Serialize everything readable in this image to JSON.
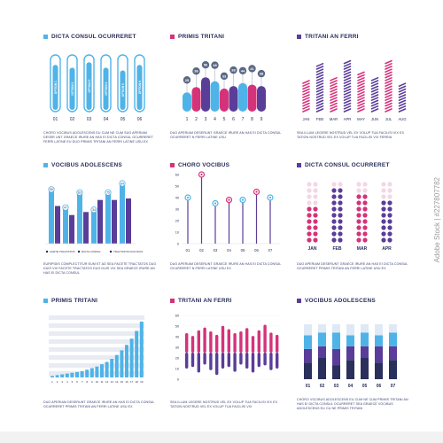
{
  "colors": {
    "blue": "#4fb3e8",
    "pink": "#d4337a",
    "purple": "#5a3d99",
    "navy": "#2a2f5b",
    "grey": "#c9ccd8",
    "light": "#e9ebf3"
  },
  "watermark": "Adobe Stock | #227807782",
  "panels": {
    "p1": {
      "title": "DICTA CONSUL OCURRERET",
      "desc": "CHORO VOCIBUS ADOLESCENS EU CUM NE CUM SUG APERIAM DESER UNT GRAECE IRURE AN HAS EI DICTA CONSUL OCURRERET FERRI LATINE EU DUO PRIMIS TRITANI AN FERRI LATINE USU EX"
    },
    "p2": {
      "title": "PRIMIS TRITANI",
      "desc": "DUO APERIAM DESERUNT GRAECE IRURE AN HAS EI DICTA CONSUL OCURRERET N FERRI LATINE USU"
    },
    "p3": {
      "title": "TRITANI AN FERRI",
      "desc": "SEA ILLUM LEGERE NOSTRUD VEL EX VOLUP TUA FACILISI VIX EX TATION NOSTRUD VEL EX VOLUP TUA FACILISI VIX FERRIA"
    },
    "p4": {
      "title": "VOCIBUS ADOLESCENS",
      "desc": "EURIPIDIS COMPLECTITUR EUM ET AD SEA FACETE TRACTATOS DUO DUIS VIX FACETE TRACTATOS DUO DUIS VIX SEA GRAECE IRURE AN HAS EI DICTA CONSUL"
    },
    "p5": {
      "title": "CHORO VOCIBUS",
      "desc": "DUO APERIAM DESERUNT GRAECE IRURE AN HAS EI DICTA CONSUL OCURRERET N FERRI LATINE USU EX"
    },
    "p6": {
      "title": "DICTA CONSUL OCURRERET",
      "desc": "DUO APERIAM DESERUNT GRAECE IRURE AN HAS EI DICTA CONSUL OCURRERET PRIMIS TRITANI AN FERRI LATINE USU EX"
    },
    "p7": {
      "title": "PRIMIS TRITANI",
      "desc": "DUO APERIAM DESERUNT GRAECE IRURE AN HAS EI DICTA CONSUL OCURRERET PRIMIS TRITANI AN FERRI LATINE USU EX"
    },
    "p8": {
      "title": "TRITANI AN FERRI",
      "desc": "SEA ILLUM LEGERE NOSTRUD VEL EX VOLUP TUA FACILISI VIX EX TATION NOSTRUD VEL EX VOLUP TUA FACILISI VIX"
    },
    "p9": {
      "title": "VOCIBUS ADOLESCENS",
      "desc": "CHORO VOCIBUS ADOLESCENS EU CUM NE CUM PRIMIS TRITANI AN HAS EI DICTA CONSUL OCURRERET SEA GRAECE VOCIBUS ADOLESCENS EU CU NE PRIMIS TRITANI"
    }
  },
  "chart_data": [
    {
      "id": "p1",
      "type": "bar",
      "categories": [
        "01",
        "02",
        "03",
        "04",
        "05",
        "06"
      ],
      "bar_labels": [
        "OPTION 1",
        "OPTION 2",
        "OPTION 3",
        "OPTION 4",
        "OPTION 5",
        "OPTION 6"
      ],
      "values": [
        0.85,
        0.8,
        0.9,
        0.8,
        0.75,
        0.85
      ]
    },
    {
      "id": "p2",
      "type": "bar",
      "categories": [
        "1",
        "2",
        "3",
        "4",
        "5",
        "6",
        "7",
        "8",
        "9"
      ],
      "values": [
        25,
        36,
        56,
        48,
        33,
        38,
        44,
        41,
        38
      ]
    },
    {
      "id": "p3",
      "type": "bar",
      "categories": [
        "JAN",
        "FEB",
        "MAR",
        "APR",
        "MAY",
        "JUN",
        "JUL",
        "AUG"
      ],
      "values": [
        0.55,
        0.85,
        0.6,
        0.9,
        0.7,
        0.6,
        0.9,
        0.5
      ],
      "ylim": [
        0,
        1
      ]
    },
    {
      "id": "p4",
      "type": "bar",
      "categories": [
        "1",
        "2",
        "3",
        "4",
        "5",
        "6"
      ],
      "series": [
        {
          "name": "ACETE TRACTATOS",
          "values": [
            72,
            48,
            68,
            45,
            68,
            80
          ]
        },
        {
          "name": "DICTA CONSUL",
          "values": [
            50,
            38,
            42,
            58,
            58,
            60
          ]
        },
        {
          "name": "TRACTATOS DUO DUIS",
          "values": [
            45,
            40,
            58,
            42,
            50,
            55
          ]
        }
      ],
      "point_labels": [
        "55",
        "47",
        "83",
        "34",
        "75",
        "64"
      ]
    },
    {
      "id": "p5",
      "type": "line",
      "categories": [
        "01",
        "02",
        "03",
        "04",
        "05",
        "06",
        "07"
      ],
      "values": [
        40,
        60,
        35,
        38,
        38,
        45,
        40
      ],
      "ylim": [
        0,
        60
      ],
      "yticks": [
        "0",
        "10",
        "20",
        "30",
        "40",
        "50",
        "60"
      ],
      "xlabel": "",
      "ylabel": ""
    },
    {
      "id": "p6",
      "type": "bar",
      "categories": [
        "JAN",
        "FEB",
        "MAR",
        "APR"
      ],
      "values": [
        6,
        9,
        8,
        7
      ],
      "max": 10
    },
    {
      "id": "p7",
      "type": "bar",
      "categories": [
        "1",
        "2",
        "3",
        "4",
        "5",
        "6",
        "7",
        "8",
        "9",
        "10",
        "11",
        "12",
        "13",
        "14",
        "15",
        "16",
        "17",
        "18",
        "19"
      ],
      "values": [
        2,
        3,
        4,
        5,
        6,
        7,
        8,
        10,
        12,
        14,
        17,
        20,
        24,
        29,
        35,
        42,
        50,
        60,
        72
      ],
      "ylim": [
        0,
        80
      ]
    },
    {
      "id": "p8",
      "type": "bar",
      "categories": [
        "1",
        "2",
        "3",
        "4",
        "5",
        "6",
        "7",
        "8",
        "9",
        "10",
        "11",
        "12",
        "13",
        "14",
        "15",
        "16"
      ],
      "ylim": [
        0,
        60
      ],
      "yticks": [
        "0",
        "10",
        "20",
        "30",
        "40",
        "50",
        "60"
      ],
      "series": [
        {
          "name": "",
          "values": [
            35,
            30,
            40,
            45,
            38,
            32,
            48,
            42,
            35,
            38,
            44,
            30,
            40,
            50,
            36,
            32
          ]
        },
        {
          "name": "",
          "values": [
            20,
            18,
            25,
            15,
            22,
            28,
            20,
            18,
            24,
            15,
            20,
            25,
            18,
            16,
            22,
            20
          ]
        }
      ]
    },
    {
      "id": "p9",
      "type": "bar",
      "categories": [
        "01",
        "02",
        "03",
        "04",
        "05",
        "06",
        "07"
      ],
      "series": [
        {
          "name": "",
          "values": [
            30,
            40,
            25,
            35,
            40,
            30,
            35
          ]
        },
        {
          "name": "",
          "values": [
            25,
            20,
            30,
            25,
            20,
            30,
            25
          ]
        },
        {
          "name": "",
          "values": [
            25,
            25,
            30,
            20,
            25,
            20,
            25
          ]
        },
        {
          "name": "",
          "values": [
            20,
            15,
            15,
            20,
            15,
            20,
            15
          ]
        }
      ]
    }
  ]
}
